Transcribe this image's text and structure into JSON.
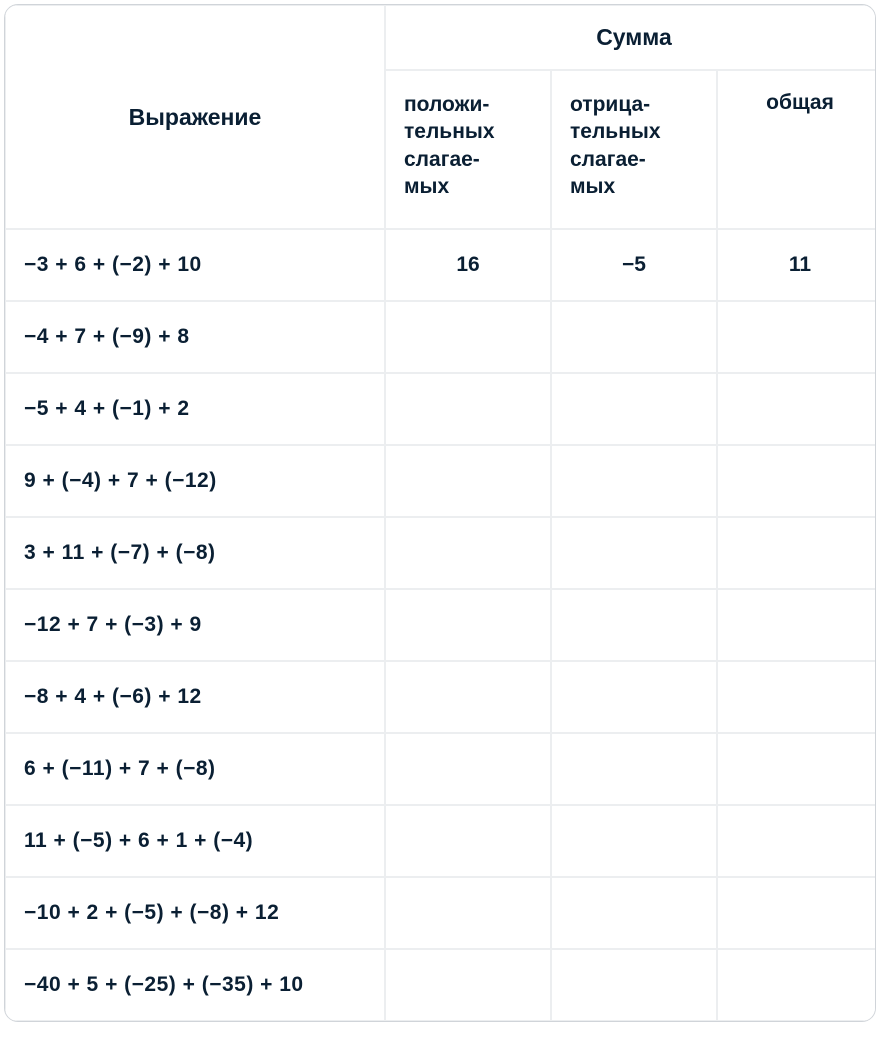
{
  "type": "table",
  "background_color": "#ffffff",
  "border_color": "#eceef0",
  "outer_border_color": "#d0d4d9",
  "text_color": "#0a1f33",
  "header_fontsize": 23,
  "subheader_fontsize": 21,
  "cell_fontsize": 21,
  "border_radius": 14,
  "columns": {
    "expression": "Выражение",
    "sum_group": "Сумма",
    "positive": "положи-\nтельных слагае-\nмых",
    "negative": "отрица-\nтельных слагае-\nмых",
    "total": "общая"
  },
  "column_widths": {
    "expression": 380,
    "positive": 166,
    "negative": 166,
    "total": 166
  },
  "rows": [
    {
      "expression": "−3 + 6 + (−2) + 10",
      "positive": "16",
      "negative": "−5",
      "total": "11"
    },
    {
      "expression": "−4 + 7 + (−9) + 8",
      "positive": "",
      "negative": "",
      "total": ""
    },
    {
      "expression": "−5 + 4 + (−1) + 2",
      "positive": "",
      "negative": "",
      "total": ""
    },
    {
      "expression": "9 + (−4) + 7 + (−12)",
      "positive": "",
      "negative": "",
      "total": ""
    },
    {
      "expression": "3 + 11 + (−7) + (−8)",
      "positive": "",
      "negative": "",
      "total": ""
    },
    {
      "expression": "−12 + 7 + (−3) + 9",
      "positive": "",
      "negative": "",
      "total": ""
    },
    {
      "expression": "−8 + 4 + (−6) + 12",
      "positive": "",
      "negative": "",
      "total": ""
    },
    {
      "expression": "6 + (−11) + 7 + (−8)",
      "positive": "",
      "negative": "",
      "total": ""
    },
    {
      "expression": "11 + (−5) + 6 + 1 + (−4)",
      "positive": "",
      "negative": "",
      "total": ""
    },
    {
      "expression": "−10 + 2 + (−5) + (−8) + 12",
      "positive": "",
      "negative": "",
      "total": ""
    },
    {
      "expression": "−40 + 5 + (−25) + (−35) + 10",
      "positive": "",
      "negative": "",
      "total": ""
    }
  ]
}
